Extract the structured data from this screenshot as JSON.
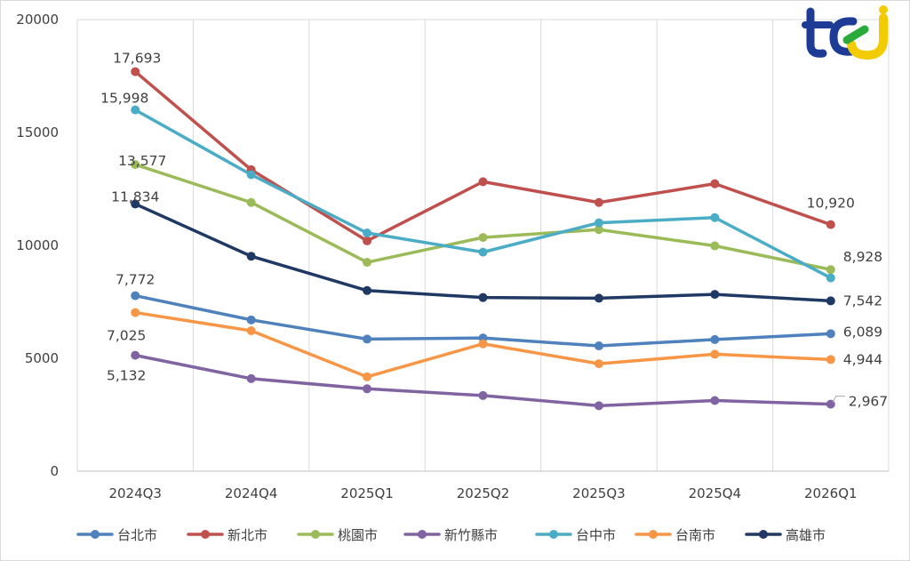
{
  "chart_data": {
    "type": "line",
    "title": "",
    "xlabel": "",
    "ylabel": "",
    "categories": [
      "2024Q3",
      "2024Q4",
      "2025Q1",
      "2025Q2",
      "2025Q3",
      "2025Q4",
      "2026Q1"
    ],
    "ylim": [
      0,
      20000
    ],
    "yticks": [
      "0",
      "5000",
      "10000",
      "15000",
      "20000"
    ],
    "grid": "vertical",
    "legend_position": "bottom",
    "series": [
      {
        "name": "台北市",
        "color": "#4F81BD",
        "values": [
          7772,
          6700,
          5850,
          5900,
          5550,
          5830,
          6089
        ]
      },
      {
        "name": "新北市",
        "color": "#C0504D",
        "values": [
          17693,
          13350,
          10200,
          12820,
          11900,
          12730,
          10920
        ]
      },
      {
        "name": "桃園市",
        "color": "#9BBB59",
        "values": [
          13577,
          11900,
          9250,
          10350,
          10700,
          9980,
          8928
        ]
      },
      {
        "name": "新竹縣市",
        "color": "#8064A2",
        "values": [
          5132,
          4100,
          3650,
          3350,
          2900,
          3130,
          2967
        ]
      },
      {
        "name": "台中市",
        "color": "#4BACC6",
        "values": [
          15998,
          13130,
          10550,
          9700,
          11000,
          11230,
          8560
        ]
      },
      {
        "name": "台南市",
        "color": "#F79646",
        "values": [
          7025,
          6220,
          4180,
          5640,
          4760,
          5180,
          4944
        ]
      },
      {
        "name": "高雄市",
        "color": "#1F3864",
        "values": [
          11834,
          9520,
          8000,
          7690,
          7660,
          7830,
          7542
        ]
      }
    ],
    "data_labels": [
      {
        "series": 0,
        "point": 0,
        "text": "7,772"
      },
      {
        "series": 0,
        "point": 6,
        "text": "6,089"
      },
      {
        "series": 1,
        "point": 0,
        "text": "17,693"
      },
      {
        "series": 1,
        "point": 6,
        "text": "10,920"
      },
      {
        "series": 2,
        "point": 0,
        "text": "13,577"
      },
      {
        "series": 2,
        "point": 6,
        "text": "8,928"
      },
      {
        "series": 3,
        "point": 0,
        "text": "5,132"
      },
      {
        "series": 3,
        "point": 6,
        "text": "2,967"
      },
      {
        "series": 4,
        "point": 0,
        "text": "15,998"
      },
      {
        "series": 5,
        "point": 0,
        "text": "7,025"
      },
      {
        "series": 5,
        "point": 6,
        "text": "4,944"
      },
      {
        "series": 6,
        "point": 0,
        "text": "11,834"
      },
      {
        "series": 6,
        "point": 6,
        "text": "7,542"
      }
    ]
  }
}
